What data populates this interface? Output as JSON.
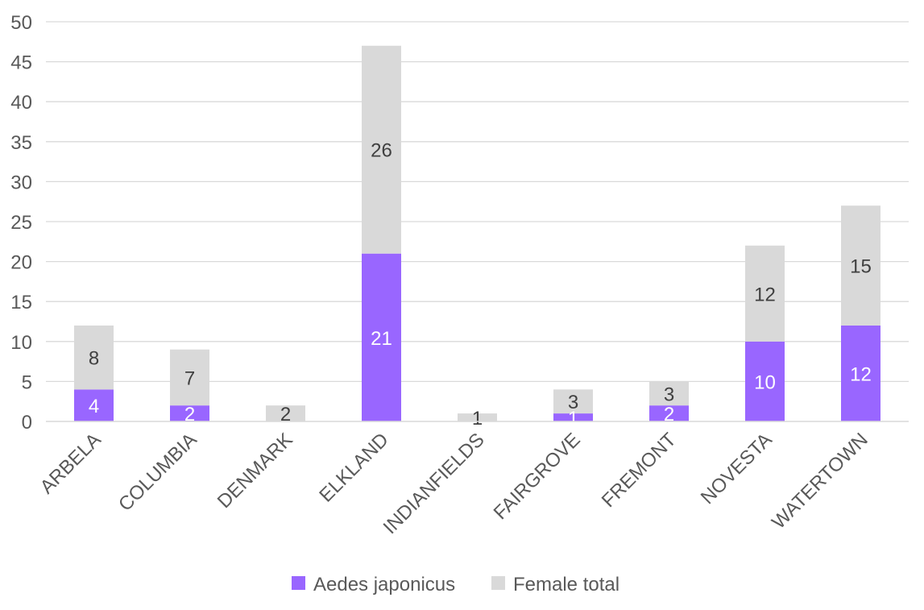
{
  "chart_data": {
    "type": "bar",
    "stacked": true,
    "categories": [
      "ARBELA",
      "COLUMBIA",
      "DENMARK",
      "ELKLAND",
      "INDIANFIELDS",
      "FAIRGROVE",
      "FREMONT",
      "NOVESTA",
      "WATERTOWN"
    ],
    "series": [
      {
        "name": "Aedes japonicus",
        "values": [
          4,
          2,
          0,
          21,
          0,
          1,
          2,
          10,
          12
        ],
        "labels": [
          "4",
          "2",
          "",
          "21",
          "",
          "1",
          "2",
          "10",
          "12"
        ],
        "color": "#9966ff",
        "label_color": "#ffffff"
      },
      {
        "name": "Female total",
        "values": [
          8,
          7,
          2,
          26,
          1,
          3,
          3,
          12,
          15
        ],
        "labels": [
          "8",
          "7",
          "2",
          "26",
          "1",
          "3",
          "3",
          "12",
          "15"
        ],
        "color": "#d9d9d9",
        "label_color": "#404040"
      }
    ],
    "ylim": [
      0,
      50
    ],
    "yticks": [
      "0",
      "5",
      "10",
      "15",
      "20",
      "25",
      "30",
      "35",
      "40",
      "45",
      "50"
    ],
    "grid": true,
    "legend": "bottom",
    "title": "",
    "xlabel": "",
    "ylabel": ""
  }
}
